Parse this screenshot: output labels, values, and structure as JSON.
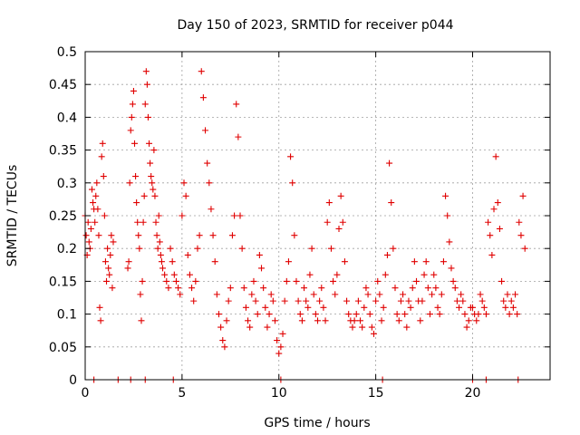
{
  "chart_data": {
    "type": "scatter",
    "title": "Day 150 of 2023, SRMTID for receiver p044",
    "xlabel": "GPS time / hours",
    "ylabel": "SRMTID / TECUs",
    "xlim": [
      0,
      24
    ],
    "ylim": [
      0,
      0.5
    ],
    "x_ticks": [
      0,
      5,
      10,
      15,
      20
    ],
    "x_tick_labels": [
      "0",
      "5",
      "10",
      "15",
      "20"
    ],
    "y_ticks": [
      0,
      0.05,
      0.1,
      0.15,
      0.2,
      0.25,
      0.3,
      0.35,
      0.4,
      0.45,
      0.5
    ],
    "y_tick_labels": [
      "0",
      "0.05",
      "0.1",
      "0.15",
      "0.2",
      "0.25",
      "0.3",
      "0.35",
      "0.4",
      "0.45",
      "0.5"
    ],
    "grid": true,
    "marker": "+",
    "color": "#e00000",
    "series": [
      {
        "name": "SRMTID",
        "x": [
          0.0,
          0.05,
          0.1,
          0.15,
          0.2,
          0.25,
          0.3,
          0.35,
          0.4,
          0.45,
          0.5,
          0.55,
          0.6,
          0.65,
          0.7,
          0.75,
          0.8,
          0.85,
          0.9,
          0.95,
          1.0,
          1.05,
          1.1,
          1.15,
          1.2,
          1.25,
          1.3,
          1.35,
          1.4,
          1.45,
          2.2,
          2.25,
          2.3,
          2.35,
          2.4,
          2.45,
          2.5,
          2.55,
          2.6,
          2.65,
          2.7,
          2.75,
          2.8,
          2.85,
          2.9,
          2.95,
          3.0,
          3.05,
          3.1,
          3.15,
          3.2,
          3.25,
          3.3,
          3.35,
          3.4,
          3.45,
          3.5,
          3.55,
          3.6,
          3.65,
          3.7,
          3.75,
          3.8,
          3.85,
          3.9,
          3.95,
          4.0,
          4.1,
          4.2,
          4.3,
          4.4,
          4.5,
          4.6,
          4.7,
          4.8,
          4.9,
          5.0,
          5.1,
          5.2,
          5.3,
          5.4,
          5.5,
          5.6,
          5.7,
          5.8,
          5.9,
          6.0,
          6.1,
          6.2,
          6.3,
          6.4,
          6.5,
          6.6,
          6.7,
          6.8,
          6.9,
          7.0,
          7.1,
          7.2,
          7.3,
          7.4,
          7.5,
          7.6,
          7.7,
          7.8,
          7.9,
          8.0,
          8.1,
          8.2,
          8.3,
          8.4,
          8.5,
          8.6,
          8.7,
          8.8,
          8.9,
          9.0,
          9.1,
          9.2,
          9.3,
          9.4,
          9.5,
          9.6,
          9.7,
          9.8,
          9.9,
          10.0,
          10.1,
          10.2,
          10.3,
          10.4,
          10.5,
          10.6,
          10.7,
          10.8,
          10.9,
          11.0,
          11.1,
          11.2,
          11.3,
          11.4,
          11.5,
          11.6,
          11.7,
          11.8,
          11.9,
          12.0,
          12.1,
          12.2,
          12.3,
          12.4,
          12.5,
          12.6,
          12.7,
          12.8,
          12.9,
          13.0,
          13.1,
          13.2,
          13.3,
          13.4,
          13.5,
          13.6,
          13.7,
          13.8,
          13.9,
          14.0,
          14.1,
          14.2,
          14.3,
          14.4,
          14.5,
          14.6,
          14.7,
          14.8,
          14.9,
          15.0,
          15.1,
          15.2,
          15.3,
          15.4,
          15.5,
          15.6,
          15.7,
          15.8,
          15.9,
          16.0,
          16.1,
          16.2,
          16.3,
          16.4,
          16.5,
          16.6,
          16.7,
          16.8,
          16.9,
          17.0,
          17.1,
          17.2,
          17.3,
          17.4,
          17.5,
          17.6,
          17.7,
          17.8,
          17.9,
          18.0,
          18.1,
          18.2,
          18.3,
          18.4,
          18.5,
          18.6,
          18.7,
          18.8,
          18.9,
          19.0,
          19.1,
          19.2,
          19.3,
          19.4,
          19.5,
          19.6,
          19.7,
          19.8,
          19.9,
          20.0,
          20.1,
          20.2,
          20.3,
          20.4,
          20.5,
          20.6,
          20.7,
          20.8,
          20.9,
          21.0,
          21.1,
          21.2,
          21.3,
          21.4,
          21.5,
          21.6,
          21.7,
          21.8,
          21.9,
          22.0,
          22.1,
          22.2,
          22.3,
          22.4,
          22.5,
          22.6,
          22.7,
          0.45,
          1.7,
          2.35,
          3.1,
          4.55,
          10.1,
          15.35,
          20.0,
          20.7,
          22.35
        ],
        "y": [
          0.25,
          0.22,
          0.19,
          0.24,
          0.21,
          0.2,
          0.23,
          0.29,
          0.27,
          0.26,
          0.24,
          0.28,
          0.3,
          0.26,
          0.22,
          0.11,
          0.09,
          0.34,
          0.36,
          0.31,
          0.25,
          0.18,
          0.15,
          0.2,
          0.17,
          0.16,
          0.19,
          0.22,
          0.14,
          0.21,
          0.17,
          0.18,
          0.3,
          0.38,
          0.4,
          0.42,
          0.44,
          0.36,
          0.31,
          0.27,
          0.24,
          0.22,
          0.2,
          0.13,
          0.09,
          0.15,
          0.24,
          0.28,
          0.42,
          0.47,
          0.45,
          0.4,
          0.36,
          0.33,
          0.31,
          0.3,
          0.29,
          0.35,
          0.28,
          0.24,
          0.22,
          0.2,
          0.25,
          0.21,
          0.19,
          0.18,
          0.17,
          0.16,
          0.15,
          0.14,
          0.2,
          0.18,
          0.16,
          0.15,
          0.14,
          0.13,
          0.25,
          0.3,
          0.28,
          0.19,
          0.16,
          0.14,
          0.12,
          0.15,
          0.2,
          0.22,
          0.47,
          0.43,
          0.38,
          0.33,
          0.3,
          0.26,
          0.22,
          0.18,
          0.13,
          0.1,
          0.08,
          0.06,
          0.05,
          0.09,
          0.12,
          0.14,
          0.22,
          0.25,
          0.42,
          0.37,
          0.25,
          0.2,
          0.14,
          0.11,
          0.09,
          0.08,
          0.13,
          0.15,
          0.12,
          0.1,
          0.19,
          0.17,
          0.14,
          0.11,
          0.08,
          0.1,
          0.13,
          0.12,
          0.09,
          0.06,
          0.04,
          0.05,
          0.07,
          0.12,
          0.15,
          0.18,
          0.34,
          0.3,
          0.22,
          0.15,
          0.12,
          0.1,
          0.09,
          0.14,
          0.12,
          0.11,
          0.16,
          0.2,
          0.13,
          0.1,
          0.09,
          0.12,
          0.14,
          0.11,
          0.09,
          0.24,
          0.27,
          0.2,
          0.15,
          0.13,
          0.16,
          0.23,
          0.28,
          0.24,
          0.18,
          0.12,
          0.1,
          0.09,
          0.08,
          0.09,
          0.1,
          0.12,
          0.09,
          0.08,
          0.11,
          0.14,
          0.13,
          0.1,
          0.08,
          0.07,
          0.12,
          0.15,
          0.13,
          0.09,
          0.11,
          0.16,
          0.19,
          0.33,
          0.27,
          0.2,
          0.14,
          0.1,
          0.09,
          0.12,
          0.13,
          0.1,
          0.08,
          0.12,
          0.11,
          0.14,
          0.18,
          0.15,
          0.12,
          0.09,
          0.12,
          0.16,
          0.18,
          0.14,
          0.1,
          0.13,
          0.16,
          0.14,
          0.11,
          0.1,
          0.13,
          0.18,
          0.28,
          0.25,
          0.21,
          0.17,
          0.15,
          0.14,
          0.12,
          0.11,
          0.13,
          0.12,
          0.1,
          0.08,
          0.09,
          0.11,
          0.11,
          0.1,
          0.09,
          0.1,
          0.13,
          0.12,
          0.11,
          0.1,
          0.24,
          0.22,
          0.19,
          0.26,
          0.34,
          0.27,
          0.23,
          0.15,
          0.12,
          0.11,
          0.13,
          0.1,
          0.12,
          0.11,
          0.13,
          0.1,
          0.24,
          0.22,
          0.28,
          0.2,
          0.0,
          0.0,
          0.0,
          0.0,
          0.0,
          0.0,
          0.0,
          0.0,
          0.0,
          0.0
        ]
      }
    ]
  }
}
